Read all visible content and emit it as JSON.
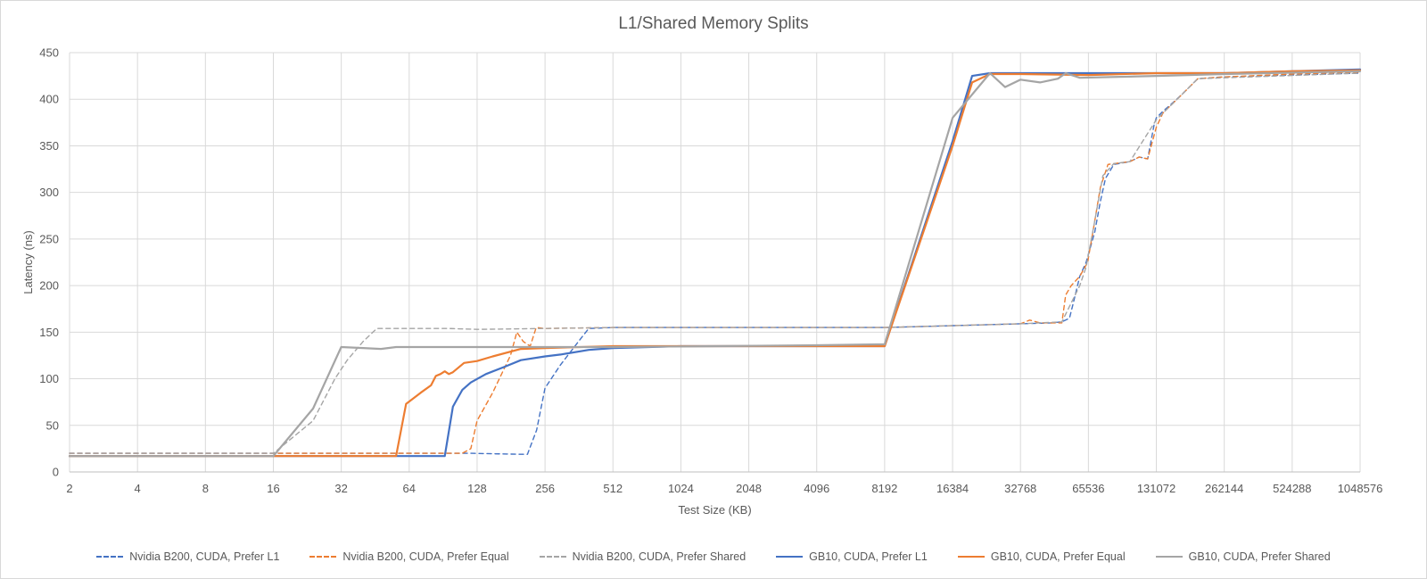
{
  "chart_data": {
    "type": "line",
    "title": "L1/Shared Memory Splits",
    "xlabel": "Test Size (KB)",
    "ylabel": "Latency (ns)",
    "x_scale": "log2",
    "xlim": [
      2,
      1048576
    ],
    "ylim": [
      0,
      450
    ],
    "x_ticks": [
      "2",
      "4",
      "8",
      "16",
      "32",
      "64",
      "128",
      "256",
      "512",
      "1024",
      "2048",
      "4096",
      "8192",
      "16384",
      "32768",
      "65536",
      "131072",
      "262144",
      "524288",
      "1048576"
    ],
    "y_ticks": [
      "0",
      "50",
      "100",
      "150",
      "200",
      "250",
      "300",
      "350",
      "400",
      "450"
    ],
    "grid": true,
    "legend_position": "bottom",
    "series": [
      {
        "name": "Nvidia B200, CUDA, Prefer L1",
        "color": "#4472c4",
        "dash": true,
        "points": [
          [
            2,
            20
          ],
          [
            16,
            20
          ],
          [
            64,
            20
          ],
          [
            100,
            20
          ],
          [
            120,
            20
          ],
          [
            150,
            19.5
          ],
          [
            200,
            19
          ],
          [
            214,
            19
          ],
          [
            235,
            45
          ],
          [
            256,
            90
          ],
          [
            300,
            115
          ],
          [
            360,
            140
          ],
          [
            400,
            154
          ],
          [
            512,
            155
          ],
          [
            1024,
            155
          ],
          [
            8192,
            155
          ],
          [
            16384,
            157
          ],
          [
            32768,
            159
          ],
          [
            45000,
            160
          ],
          [
            50000,
            161
          ],
          [
            54000,
            165
          ],
          [
            56000,
            180
          ],
          [
            58000,
            195
          ],
          [
            60000,
            210
          ],
          [
            64000,
            225
          ],
          [
            70000,
            258
          ],
          [
            74000,
            290
          ],
          [
            78000,
            315
          ],
          [
            85000,
            330
          ],
          [
            100000,
            333
          ],
          [
            110000,
            338
          ],
          [
            120000,
            336
          ],
          [
            128000,
            372
          ],
          [
            131072,
            380
          ],
          [
            140000,
            387
          ],
          [
            150000,
            393
          ],
          [
            170000,
            405
          ],
          [
            200000,
            422
          ],
          [
            262144,
            424
          ],
          [
            524288,
            426
          ],
          [
            1048576,
            428
          ]
        ]
      },
      {
        "name": "Nvidia B200, CUDA, Prefer Equal",
        "color": "#ed7d31",
        "dash": true,
        "points": [
          [
            2,
            20
          ],
          [
            16,
            20
          ],
          [
            64,
            20
          ],
          [
            110,
            20
          ],
          [
            120,
            25
          ],
          [
            128,
            55
          ],
          [
            150,
            85
          ],
          [
            180,
            125
          ],
          [
            192,
            150
          ],
          [
            205,
            140
          ],
          [
            220,
            135
          ],
          [
            234,
            155
          ],
          [
            256,
            154
          ],
          [
            512,
            155
          ],
          [
            1024,
            155
          ],
          [
            8192,
            155
          ],
          [
            16384,
            157
          ],
          [
            32768,
            159
          ],
          [
            36000,
            163
          ],
          [
            40000,
            160
          ],
          [
            50000,
            160
          ],
          [
            52000,
            190
          ],
          [
            55000,
            200
          ],
          [
            60000,
            210
          ],
          [
            65000,
            225
          ],
          [
            70000,
            270
          ],
          [
            74000,
            305
          ],
          [
            80000,
            330
          ],
          [
            100000,
            333
          ],
          [
            110000,
            338
          ],
          [
            120000,
            336
          ],
          [
            131072,
            370
          ],
          [
            140000,
            385
          ],
          [
            170000,
            405
          ],
          [
            200000,
            422
          ],
          [
            262144,
            424
          ],
          [
            524288,
            427
          ],
          [
            1048576,
            429
          ]
        ]
      },
      {
        "name": "Nvidia B200, CUDA, Prefer Shared",
        "color": "#a5a5a5",
        "dash": true,
        "points": [
          [
            2,
            20
          ],
          [
            16,
            20
          ],
          [
            24,
            55
          ],
          [
            30,
            100
          ],
          [
            34,
            120
          ],
          [
            40,
            140
          ],
          [
            46,
            154
          ],
          [
            64,
            154
          ],
          [
            96,
            154
          ],
          [
            128,
            153
          ],
          [
            256,
            154
          ],
          [
            512,
            155
          ],
          [
            8192,
            155
          ],
          [
            16384,
            157
          ],
          [
            32768,
            159
          ],
          [
            50000,
            161
          ],
          [
            60000,
            200
          ],
          [
            64000,
            220
          ],
          [
            70000,
            270
          ],
          [
            76000,
            318
          ],
          [
            85000,
            331
          ],
          [
            100000,
            333
          ],
          [
            131072,
            378
          ],
          [
            170000,
            405
          ],
          [
            200000,
            422
          ],
          [
            1048576,
            428
          ]
        ]
      },
      {
        "name": "GB10, CUDA, Prefer L1",
        "color": "#4472c4",
        "dash": false,
        "points": [
          [
            2,
            17
          ],
          [
            16,
            17
          ],
          [
            64,
            17
          ],
          [
            92,
            17
          ],
          [
            100,
            70
          ],
          [
            110,
            88
          ],
          [
            120,
            96
          ],
          [
            140,
            105
          ],
          [
            170,
            113
          ],
          [
            200,
            120
          ],
          [
            256,
            124
          ],
          [
            300,
            126
          ],
          [
            400,
            131
          ],
          [
            512,
            133
          ],
          [
            1024,
            135
          ],
          [
            8192,
            135
          ],
          [
            16384,
            355
          ],
          [
            20000,
            425
          ],
          [
            24000,
            428
          ],
          [
            32768,
            428
          ],
          [
            65536,
            428
          ],
          [
            131072,
            428
          ],
          [
            262144,
            428
          ],
          [
            524288,
            430
          ],
          [
            1048576,
            432
          ]
        ]
      },
      {
        "name": "GB10, CUDA, Prefer Equal",
        "color": "#ed7d31",
        "dash": false,
        "points": [
          [
            2,
            17
          ],
          [
            16,
            17
          ],
          [
            56,
            17
          ],
          [
            62,
            73
          ],
          [
            72,
            85
          ],
          [
            80,
            93
          ],
          [
            84,
            103
          ],
          [
            88,
            105
          ],
          [
            92,
            108
          ],
          [
            96,
            105
          ],
          [
            100,
            107
          ],
          [
            112,
            117
          ],
          [
            128,
            119
          ],
          [
            150,
            124
          ],
          [
            200,
            132
          ],
          [
            256,
            133
          ],
          [
            512,
            135
          ],
          [
            8192,
            135
          ],
          [
            16384,
            350
          ],
          [
            20000,
            418
          ],
          [
            24000,
            427
          ],
          [
            32768,
            427
          ],
          [
            65536,
            426
          ],
          [
            131072,
            428
          ],
          [
            262144,
            428
          ],
          [
            524288,
            430
          ],
          [
            1048576,
            431
          ]
        ]
      },
      {
        "name": "GB10, CUDA, Prefer Shared",
        "color": "#a5a5a5",
        "dash": false,
        "points": [
          [
            2,
            17
          ],
          [
            16,
            17
          ],
          [
            24,
            68
          ],
          [
            32,
            134
          ],
          [
            40,
            133
          ],
          [
            48,
            132
          ],
          [
            56,
            134
          ],
          [
            64,
            134
          ],
          [
            80,
            134
          ],
          [
            128,
            134
          ],
          [
            512,
            134
          ],
          [
            4096,
            136
          ],
          [
            8192,
            137
          ],
          [
            16384,
            380
          ],
          [
            24000,
            428
          ],
          [
            28000,
            413
          ],
          [
            32768,
            421
          ],
          [
            40000,
            418
          ],
          [
            48000,
            422
          ],
          [
            52000,
            428
          ],
          [
            60000,
            423
          ],
          [
            131072,
            425
          ],
          [
            262144,
            427
          ],
          [
            1048576,
            430
          ]
        ]
      }
    ]
  }
}
